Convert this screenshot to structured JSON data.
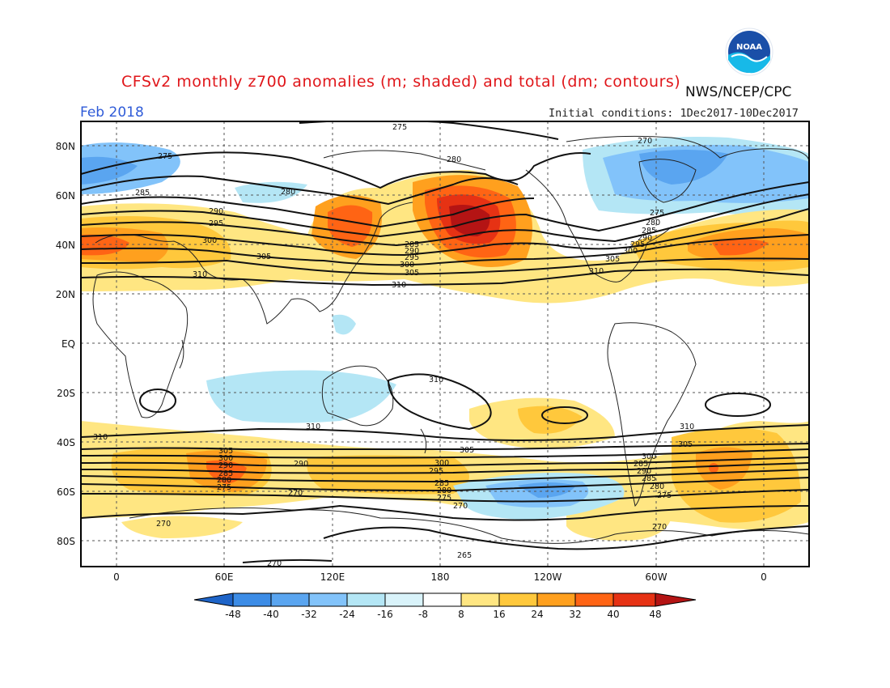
{
  "header": {
    "title": "CFSv2 monthly z700 anomalies (m; shaded) and total (dm; contours)",
    "agency": "NWS/NCEP/CPC",
    "valid_month": "Feb 2018",
    "initial_conditions": "Initial conditions: 1Dec2017-10Dec2017",
    "logo_text": "NOAA"
  },
  "map": {
    "lat_labels": [
      "80N",
      "60N",
      "40N",
      "20N",
      "EQ",
      "20S",
      "40S",
      "60S",
      "80S"
    ],
    "lon_labels": [
      "0",
      "60E",
      "120E",
      "180",
      "120W",
      "60W",
      "0"
    ],
    "contour_labels": [
      "275",
      "280",
      "285",
      "290",
      "295",
      "300",
      "305",
      "310",
      "270",
      "275",
      "280",
      "285",
      "290",
      "295",
      "300",
      "305",
      "310",
      "265",
      "270"
    ]
  },
  "colorbar": {
    "labels": [
      "-48",
      "-40",
      "-32",
      "-24",
      "-16",
      "-8",
      "8",
      "16",
      "24",
      "32",
      "40",
      "48"
    ],
    "colors": [
      "#1e64c8",
      "#3c8ce6",
      "#5aa5f0",
      "#82c3fa",
      "#b4e6f5",
      "#ffffff",
      "#ffe682",
      "#ffc83c",
      "#ffa01e",
      "#ff6414",
      "#e63214",
      "#b41414"
    ]
  }
}
